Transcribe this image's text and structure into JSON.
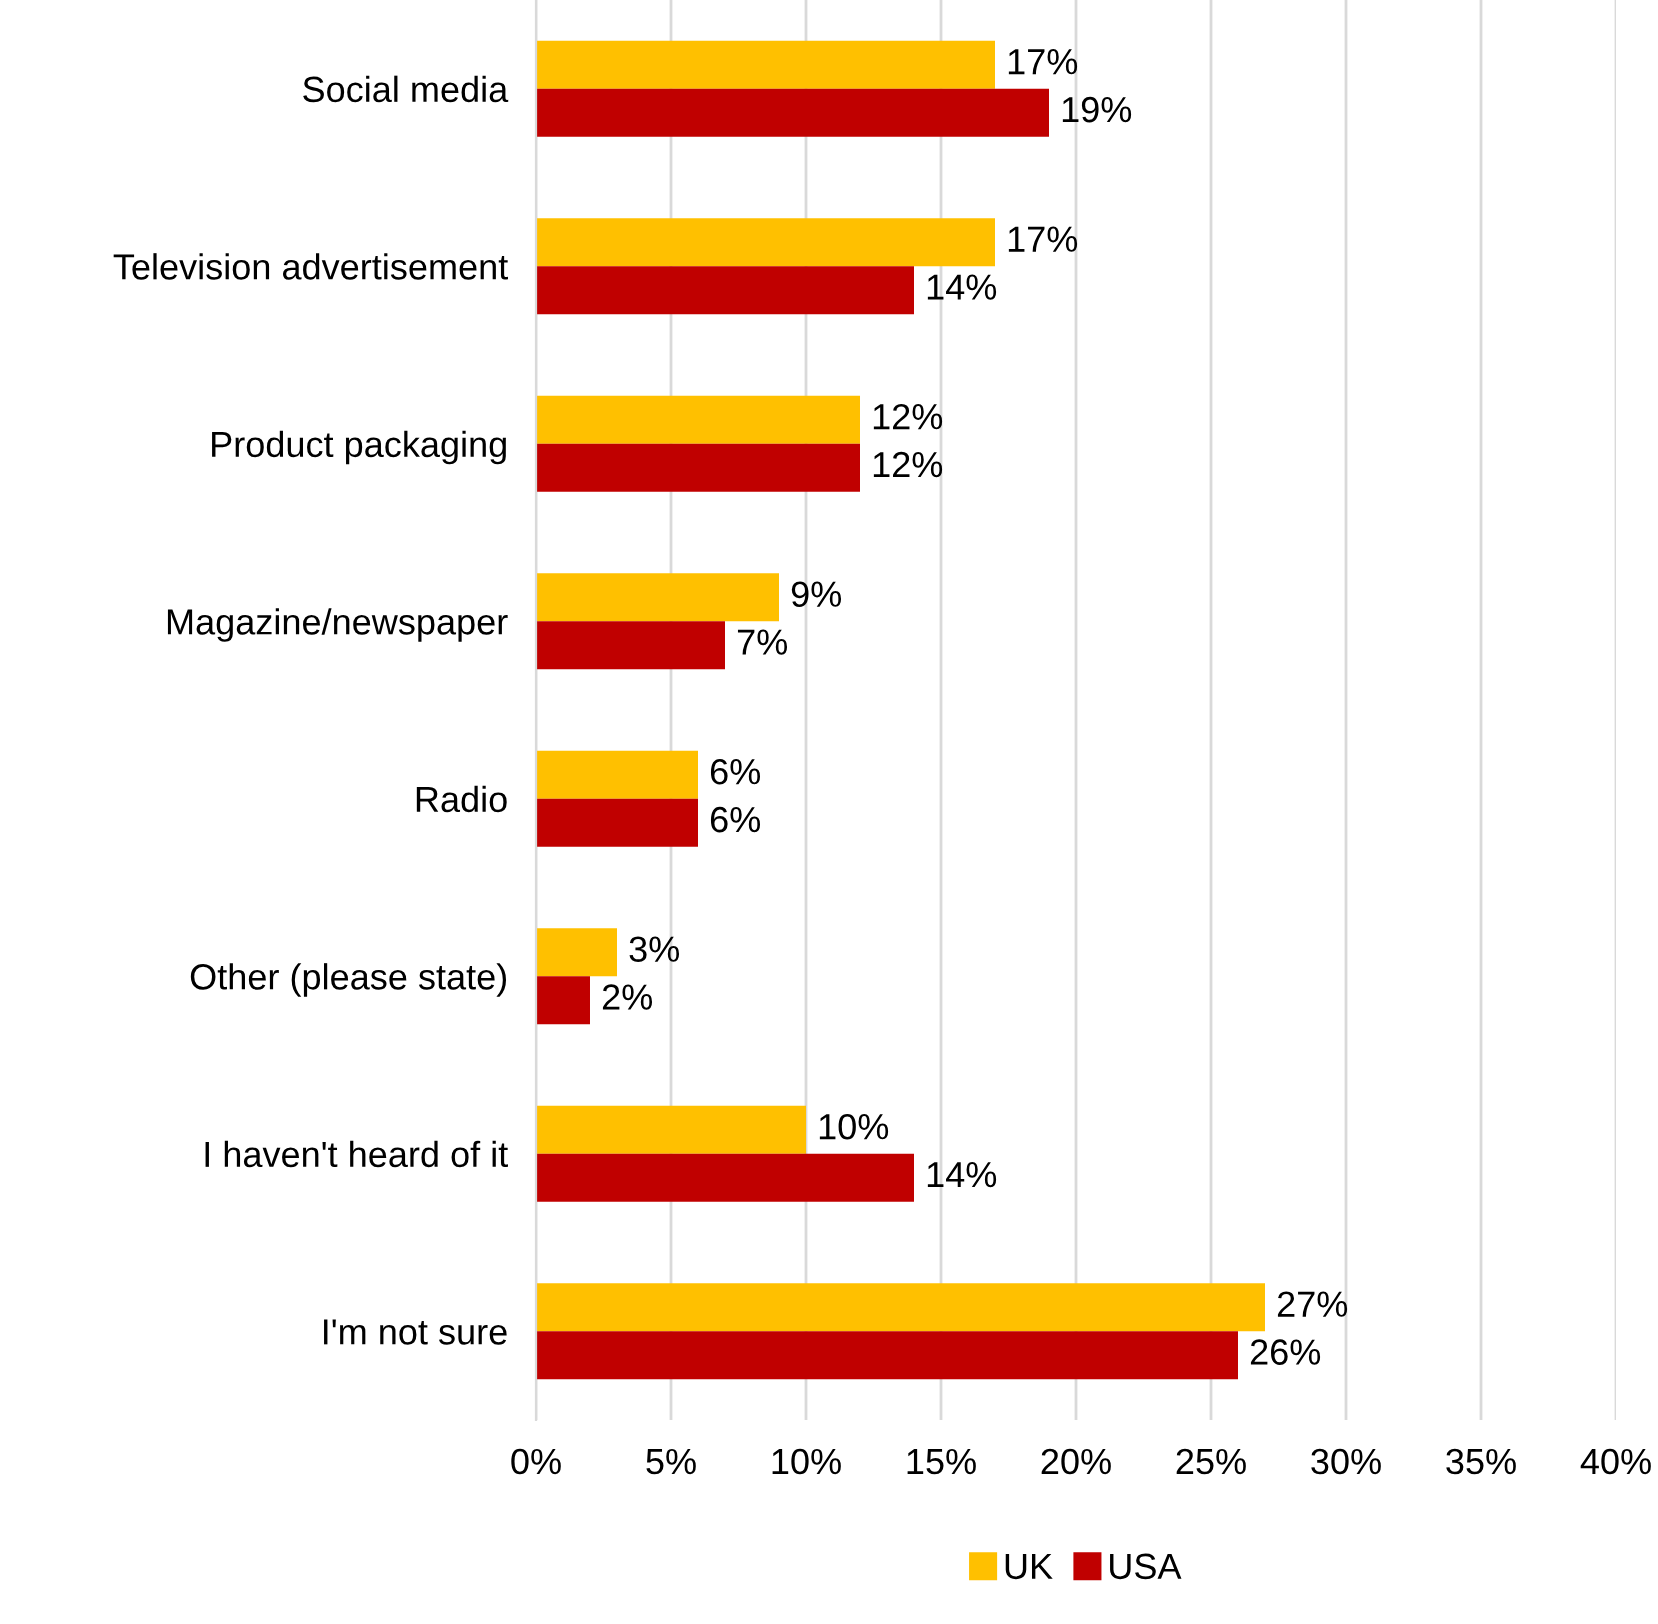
{
  "chart_data": {
    "type": "bar",
    "orientation": "horizontal",
    "categories": [
      "Social media",
      "Television advertisement",
      "Product packaging",
      "Magazine/newspaper",
      "Radio",
      "Other (please state)",
      "I haven't heard of it",
      "I'm not sure"
    ],
    "series": [
      {
        "name": "UK",
        "color": "#ffc000",
        "values": [
          17,
          17,
          12,
          9,
          6,
          3,
          10,
          27
        ],
        "value_labels": [
          "17%",
          "17%",
          "12%",
          "9%",
          "6%",
          "3%",
          "10%",
          "27%"
        ]
      },
      {
        "name": "USA",
        "color": "#c00000",
        "values": [
          19,
          14,
          12,
          7,
          6,
          2,
          14,
          26
        ],
        "value_labels": [
          "19%",
          "14%",
          "12%",
          "7%",
          "6%",
          "2%",
          "14%",
          "26%"
        ]
      }
    ],
    "xlim": [
      0,
      40
    ],
    "xticks": [
      {
        "value": 0,
        "label": "0%"
      },
      {
        "value": 5,
        "label": "5%"
      },
      {
        "value": 10,
        "label": "10%"
      },
      {
        "value": 15,
        "label": "15%"
      },
      {
        "value": 20,
        "label": "20%"
      },
      {
        "value": 25,
        "label": "25%"
      },
      {
        "value": 30,
        "label": "30%"
      },
      {
        "value": 35,
        "label": "35%"
      },
      {
        "value": 40,
        "label": "40%"
      }
    ],
    "grid": "x",
    "legend": "bottom"
  }
}
